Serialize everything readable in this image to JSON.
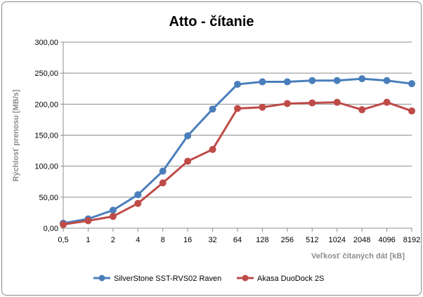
{
  "chart_data": {
    "type": "line",
    "title": "Atto - čítanie",
    "xlabel": "Veľkosť čítaných  dát [kB]",
    "ylabel": "Rýchlosť prenosu [MB/s]",
    "categories": [
      "0,5",
      "1",
      "2",
      "4",
      "8",
      "16",
      "32",
      "64",
      "128",
      "256",
      "512",
      "1024",
      "2048",
      "4096",
      "8192"
    ],
    "ylim": [
      0,
      300
    ],
    "yticks": [
      0,
      50,
      100,
      150,
      200,
      250,
      300
    ],
    "ytick_labels": [
      "0,00",
      "50,00",
      "100,00",
      "150,00",
      "200,00",
      "250,00",
      "300,00"
    ],
    "grid": "horizontal",
    "legend": "bottom",
    "series": [
      {
        "name": "SilverStone SST-RVS02 Raven",
        "color": "#4a7ebb",
        "values": [
          8,
          15,
          29,
          54,
          92,
          149,
          192,
          232,
          236,
          236,
          238,
          238,
          241,
          238,
          233
        ]
      },
      {
        "name": "Akasa DuoDock 2S",
        "color": "#be4b48",
        "values": [
          6,
          12,
          19,
          40,
          73,
          108,
          127,
          193,
          195,
          201,
          202,
          203,
          191,
          203,
          189
        ]
      }
    ]
  }
}
